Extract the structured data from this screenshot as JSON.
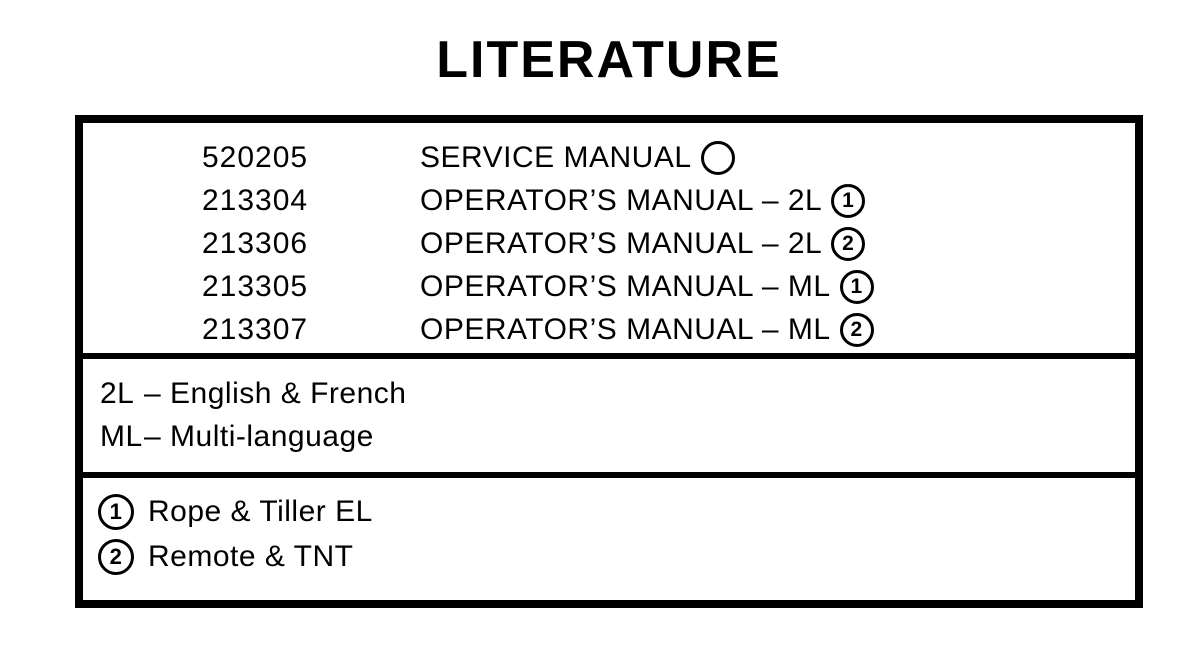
{
  "title": "LITERATURE",
  "colors": {
    "ink": "#000000",
    "paper": "#ffffff"
  },
  "parts": {
    "rows": [
      {
        "part_number": "520205",
        "description": "SERVICE MANUAL",
        "note_marker": null
      },
      {
        "part_number": "213304",
        "description": "OPERATOR’S MANUAL – 2L",
        "note_marker": "1"
      },
      {
        "part_number": "213306",
        "description": "OPERATOR’S MANUAL – 2L",
        "note_marker": "2"
      },
      {
        "part_number": "213305",
        "description": "OPERATOR’S MANUAL – ML",
        "note_marker": "1"
      },
      {
        "part_number": "213307",
        "description": "OPERATOR’S MANUAL – ML",
        "note_marker": "2"
      }
    ]
  },
  "legend": {
    "items": [
      {
        "code": "2L",
        "dash": "–",
        "label": "English & French"
      },
      {
        "code": "ML",
        "dash": "–",
        "label": "Multi-language"
      }
    ]
  },
  "notes": {
    "items": [
      {
        "marker": "1",
        "label": "Rope & Tiller EL"
      },
      {
        "marker": "2",
        "label": "Remote & TNT"
      }
    ]
  }
}
